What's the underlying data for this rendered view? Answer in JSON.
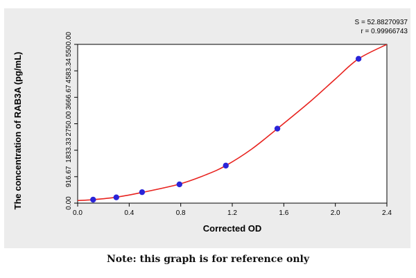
{
  "chart_data": {
    "type": "scatter",
    "xlabel": "Corrected OD",
    "ylabel": "The concentration of RAB3A (pg/mL)",
    "xlim": [
      0.0,
      2.4
    ],
    "ylim": [
      0.0,
      5500.0
    ],
    "x_ticks": [
      "0.0",
      "0.4",
      "0.8",
      "1.2",
      "1.6",
      "2.0",
      "2.4"
    ],
    "y_ticks": [
      "0.00",
      "916.67",
      "1833.33",
      "2750.00",
      "3666.67",
      "4583.34",
      "5500.00"
    ],
    "stats": {
      "s": "S = 52.88270937",
      "r": "r = 0.99966743"
    },
    "points": [
      {
        "x": 0.12,
        "y": 120
      },
      {
        "x": 0.3,
        "y": 200
      },
      {
        "x": 0.5,
        "y": 380
      },
      {
        "x": 0.79,
        "y": 650
      },
      {
        "x": 1.15,
        "y": 1300
      },
      {
        "x": 1.55,
        "y": 2580
      },
      {
        "x": 2.18,
        "y": 5000
      }
    ],
    "fit_curve": [
      {
        "x": 0.0,
        "y": 90
      },
      {
        "x": 0.12,
        "y": 120
      },
      {
        "x": 0.3,
        "y": 205
      },
      {
        "x": 0.5,
        "y": 370
      },
      {
        "x": 0.79,
        "y": 660
      },
      {
        "x": 1.0,
        "y": 990
      },
      {
        "x": 1.15,
        "y": 1300
      },
      {
        "x": 1.35,
        "y": 1870
      },
      {
        "x": 1.55,
        "y": 2580
      },
      {
        "x": 1.8,
        "y": 3500
      },
      {
        "x": 2.0,
        "y": 4300
      },
      {
        "x": 2.18,
        "y": 5000
      },
      {
        "x": 2.4,
        "y": 5550
      }
    ],
    "colors": {
      "curve": "#e8231f",
      "point": "#2a24d8",
      "axis": "#000000",
      "background": "#ececec"
    },
    "grid": false
  },
  "note": "Note: this graph is for reference only"
}
